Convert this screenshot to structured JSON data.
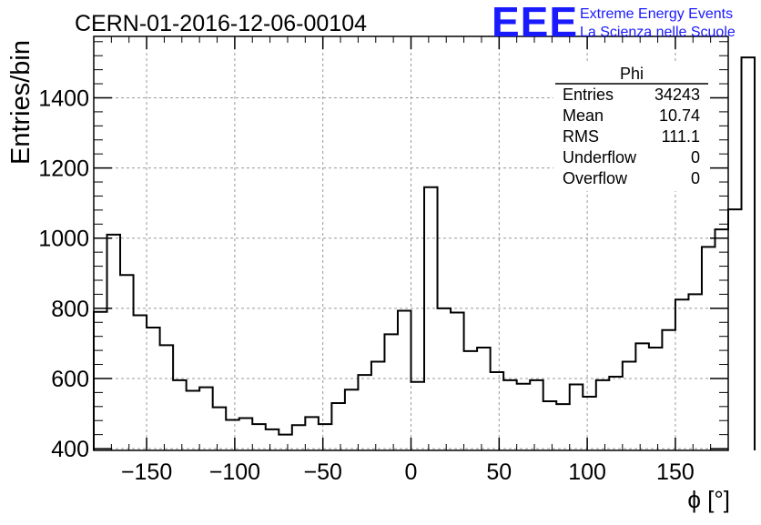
{
  "chart_data": {
    "type": "bar",
    "title": "CERN-01-2016-12-06-00104",
    "xlabel": "ϕ [°]",
    "ylabel": "Entries/bin",
    "xlim": [
      -180,
      180
    ],
    "ylim": [
      395,
      1575
    ],
    "grid": true,
    "bin_width": 7.5,
    "x_ticks": [
      -150,
      -100,
      -50,
      0,
      50,
      100,
      150
    ],
    "x_tick_labels": [
      "−150",
      "−100",
      "−50",
      "0",
      "50",
      "100",
      "150"
    ],
    "y_ticks": [
      400,
      600,
      800,
      1000,
      1200,
      1400
    ],
    "y_tick_labels": [
      "400",
      "600",
      "800",
      "1000",
      "1200",
      "1400"
    ],
    "bin_edges_start": -180,
    "values": [
      790,
      1010,
      895,
      780,
      745,
      695,
      595,
      565,
      575,
      518,
      482,
      487,
      470,
      455,
      440,
      467,
      490,
      470,
      530,
      568,
      610,
      648,
      726,
      793,
      590,
      1145,
      800,
      788,
      678,
      688,
      618,
      595,
      585,
      595,
      535,
      527,
      583,
      548,
      595,
      605,
      648,
      700,
      688,
      738,
      825,
      840,
      975,
      1025,
      1082,
      1515
    ],
    "stats": {
      "name": "Phi",
      "rows": [
        {
          "label": "Entries",
          "value": "34243"
        },
        {
          "label": "Mean",
          "value": "10.74"
        },
        {
          "label": "RMS",
          "value": "111.1"
        },
        {
          "label": "Underflow",
          "value": "0"
        },
        {
          "label": "Overflow",
          "value": "0"
        }
      ]
    }
  },
  "logo": {
    "text": "EEE",
    "line1": "Extreme Energy Events",
    "line2": "La Scienza nelle Scuole",
    "color": "#1a1aff"
  }
}
